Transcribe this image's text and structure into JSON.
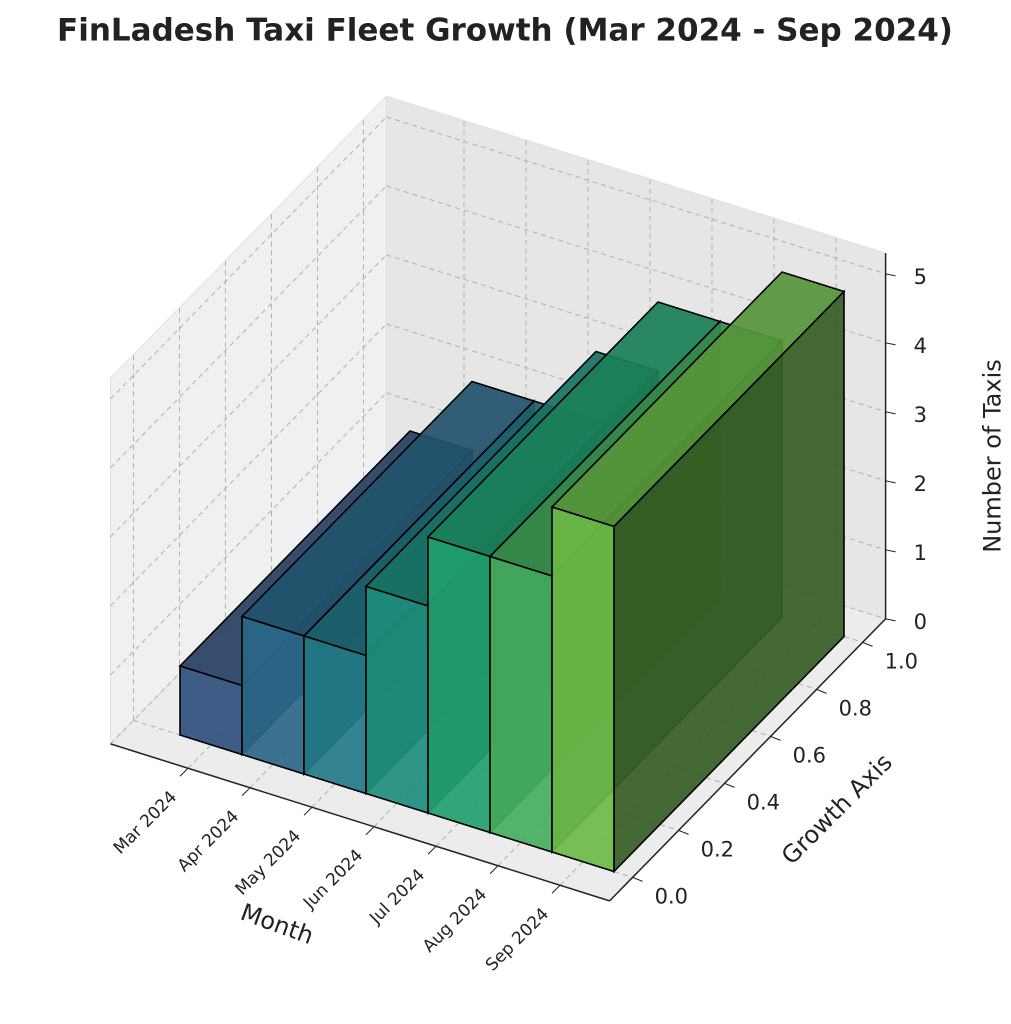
{
  "chart_data": {
    "type": "bar3d",
    "title": "FinLadesh Taxi Fleet Growth (Mar 2024 - Sep 2024)",
    "xlabel": "Month",
    "ylabel": "Growth Axis",
    "zlabel": "Number of Taxis",
    "categories": [
      "Mar 2024",
      "Apr 2024",
      "May 2024",
      "Jun 2024",
      "Jul 2024",
      "Aug 2024",
      "Sep 2024"
    ],
    "values": [
      1,
      2,
      2,
      3,
      4,
      4,
      5
    ],
    "colors": [
      "#2f4f7c",
      "#2a6788",
      "#237b88",
      "#1e8d7d",
      "#219f6e",
      "#45ae5e",
      "#6cba48"
    ],
    "ylim": [
      -0.1,
      1.1
    ],
    "yticks": [
      {
        "value": 0,
        "label": "0.0"
      },
      {
        "value": 0.2,
        "label": "0.2"
      },
      {
        "value": 0.4,
        "label": "0.4"
      },
      {
        "value": 0.6,
        "label": "0.6"
      },
      {
        "value": 0.8,
        "label": "0.8"
      },
      {
        "value": 1,
        "label": "1.0"
      }
    ],
    "zlim": [
      0,
      5.3
    ],
    "zticks": [
      0,
      1,
      2,
      3,
      4,
      5
    ],
    "grid": true
  }
}
